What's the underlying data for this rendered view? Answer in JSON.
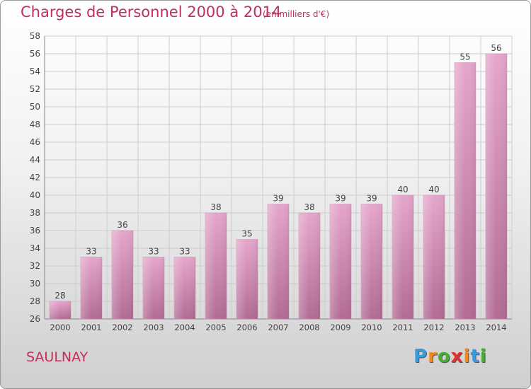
{
  "header": {
    "title": "Charges de Personnel 2000 à 2014",
    "subtitle": "(en milliers d'€)"
  },
  "footer": {
    "commune": "SAULNAY",
    "logo_text": "Proxiti"
  },
  "colors": {
    "title": "#c0305a",
    "bar_light": "#e6a6cc",
    "bar_dark": "#b26b95",
    "grid": "#cccccc",
    "logo": [
      "#3a9be0",
      "#f08a1a",
      "#44b033",
      "#e03030",
      "#f08a1a",
      "#3a9be0",
      "#44b033"
    ]
  },
  "chart_data": {
    "type": "bar",
    "title": "Charges de Personnel 2000 à 2014",
    "subtitle": "(en milliers d'€)",
    "xlabel": "",
    "ylabel": "",
    "categories": [
      "2000",
      "2001",
      "2002",
      "2003",
      "2004",
      "2005",
      "2006",
      "2007",
      "2008",
      "2009",
      "2010",
      "2011",
      "2012",
      "2013",
      "2014"
    ],
    "values": [
      28,
      33,
      36,
      33,
      33,
      38,
      35,
      39,
      38,
      39,
      39,
      40,
      40,
      55,
      56
    ],
    "ylim": [
      26,
      58
    ],
    "yticks": [
      26,
      28,
      30,
      32,
      34,
      36,
      38,
      40,
      42,
      44,
      46,
      48,
      50,
      52,
      54,
      56,
      58
    ],
    "grid": true,
    "legend": "none"
  }
}
